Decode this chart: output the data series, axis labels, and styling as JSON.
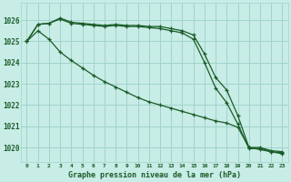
{
  "title": "Graphe pression niveau de la mer (hPa)",
  "background_color": "#c8ece6",
  "grid_color": "#a0d4cc",
  "line_color": "#1a5c28",
  "x_labels": [
    "0",
    "1",
    "2",
    "3",
    "4",
    "5",
    "6",
    "7",
    "8",
    "9",
    "10",
    "11",
    "12",
    "13",
    "14",
    "15",
    "16",
    "17",
    "18",
    "19",
    "20",
    "21",
    "22",
    "23"
  ],
  "ylim": [
    1019.3,
    1026.8
  ],
  "yticks": [
    1020,
    1021,
    1022,
    1023,
    1024,
    1025,
    1026
  ],
  "series": [
    [
      1025.0,
      1025.8,
      1025.85,
      1026.1,
      1025.9,
      1025.85,
      1025.8,
      1025.75,
      1025.8,
      1025.75,
      1025.75,
      1025.7,
      1025.7,
      1025.6,
      1025.5,
      1025.3,
      1024.4,
      1023.3,
      1022.7,
      1021.5,
      1020.0,
      1020.0,
      1019.85,
      1019.8
    ],
    [
      1025.0,
      1025.8,
      1025.85,
      1026.05,
      1025.85,
      1025.8,
      1025.75,
      1025.7,
      1025.75,
      1025.7,
      1025.7,
      1025.65,
      1025.6,
      1025.5,
      1025.4,
      1025.1,
      1024.0,
      1022.8,
      1022.1,
      1021.1,
      1019.95,
      1019.95,
      1019.8,
      1019.75
    ],
    [
      1025.0,
      1025.5,
      1025.1,
      1024.5,
      1024.1,
      1023.75,
      1023.4,
      1023.1,
      1022.85,
      1022.6,
      1022.35,
      1022.15,
      1022.0,
      1021.85,
      1021.7,
      1021.55,
      1021.4,
      1021.25,
      1021.15,
      1020.95,
      1020.0,
      1019.9,
      1019.8,
      1019.7
    ]
  ]
}
